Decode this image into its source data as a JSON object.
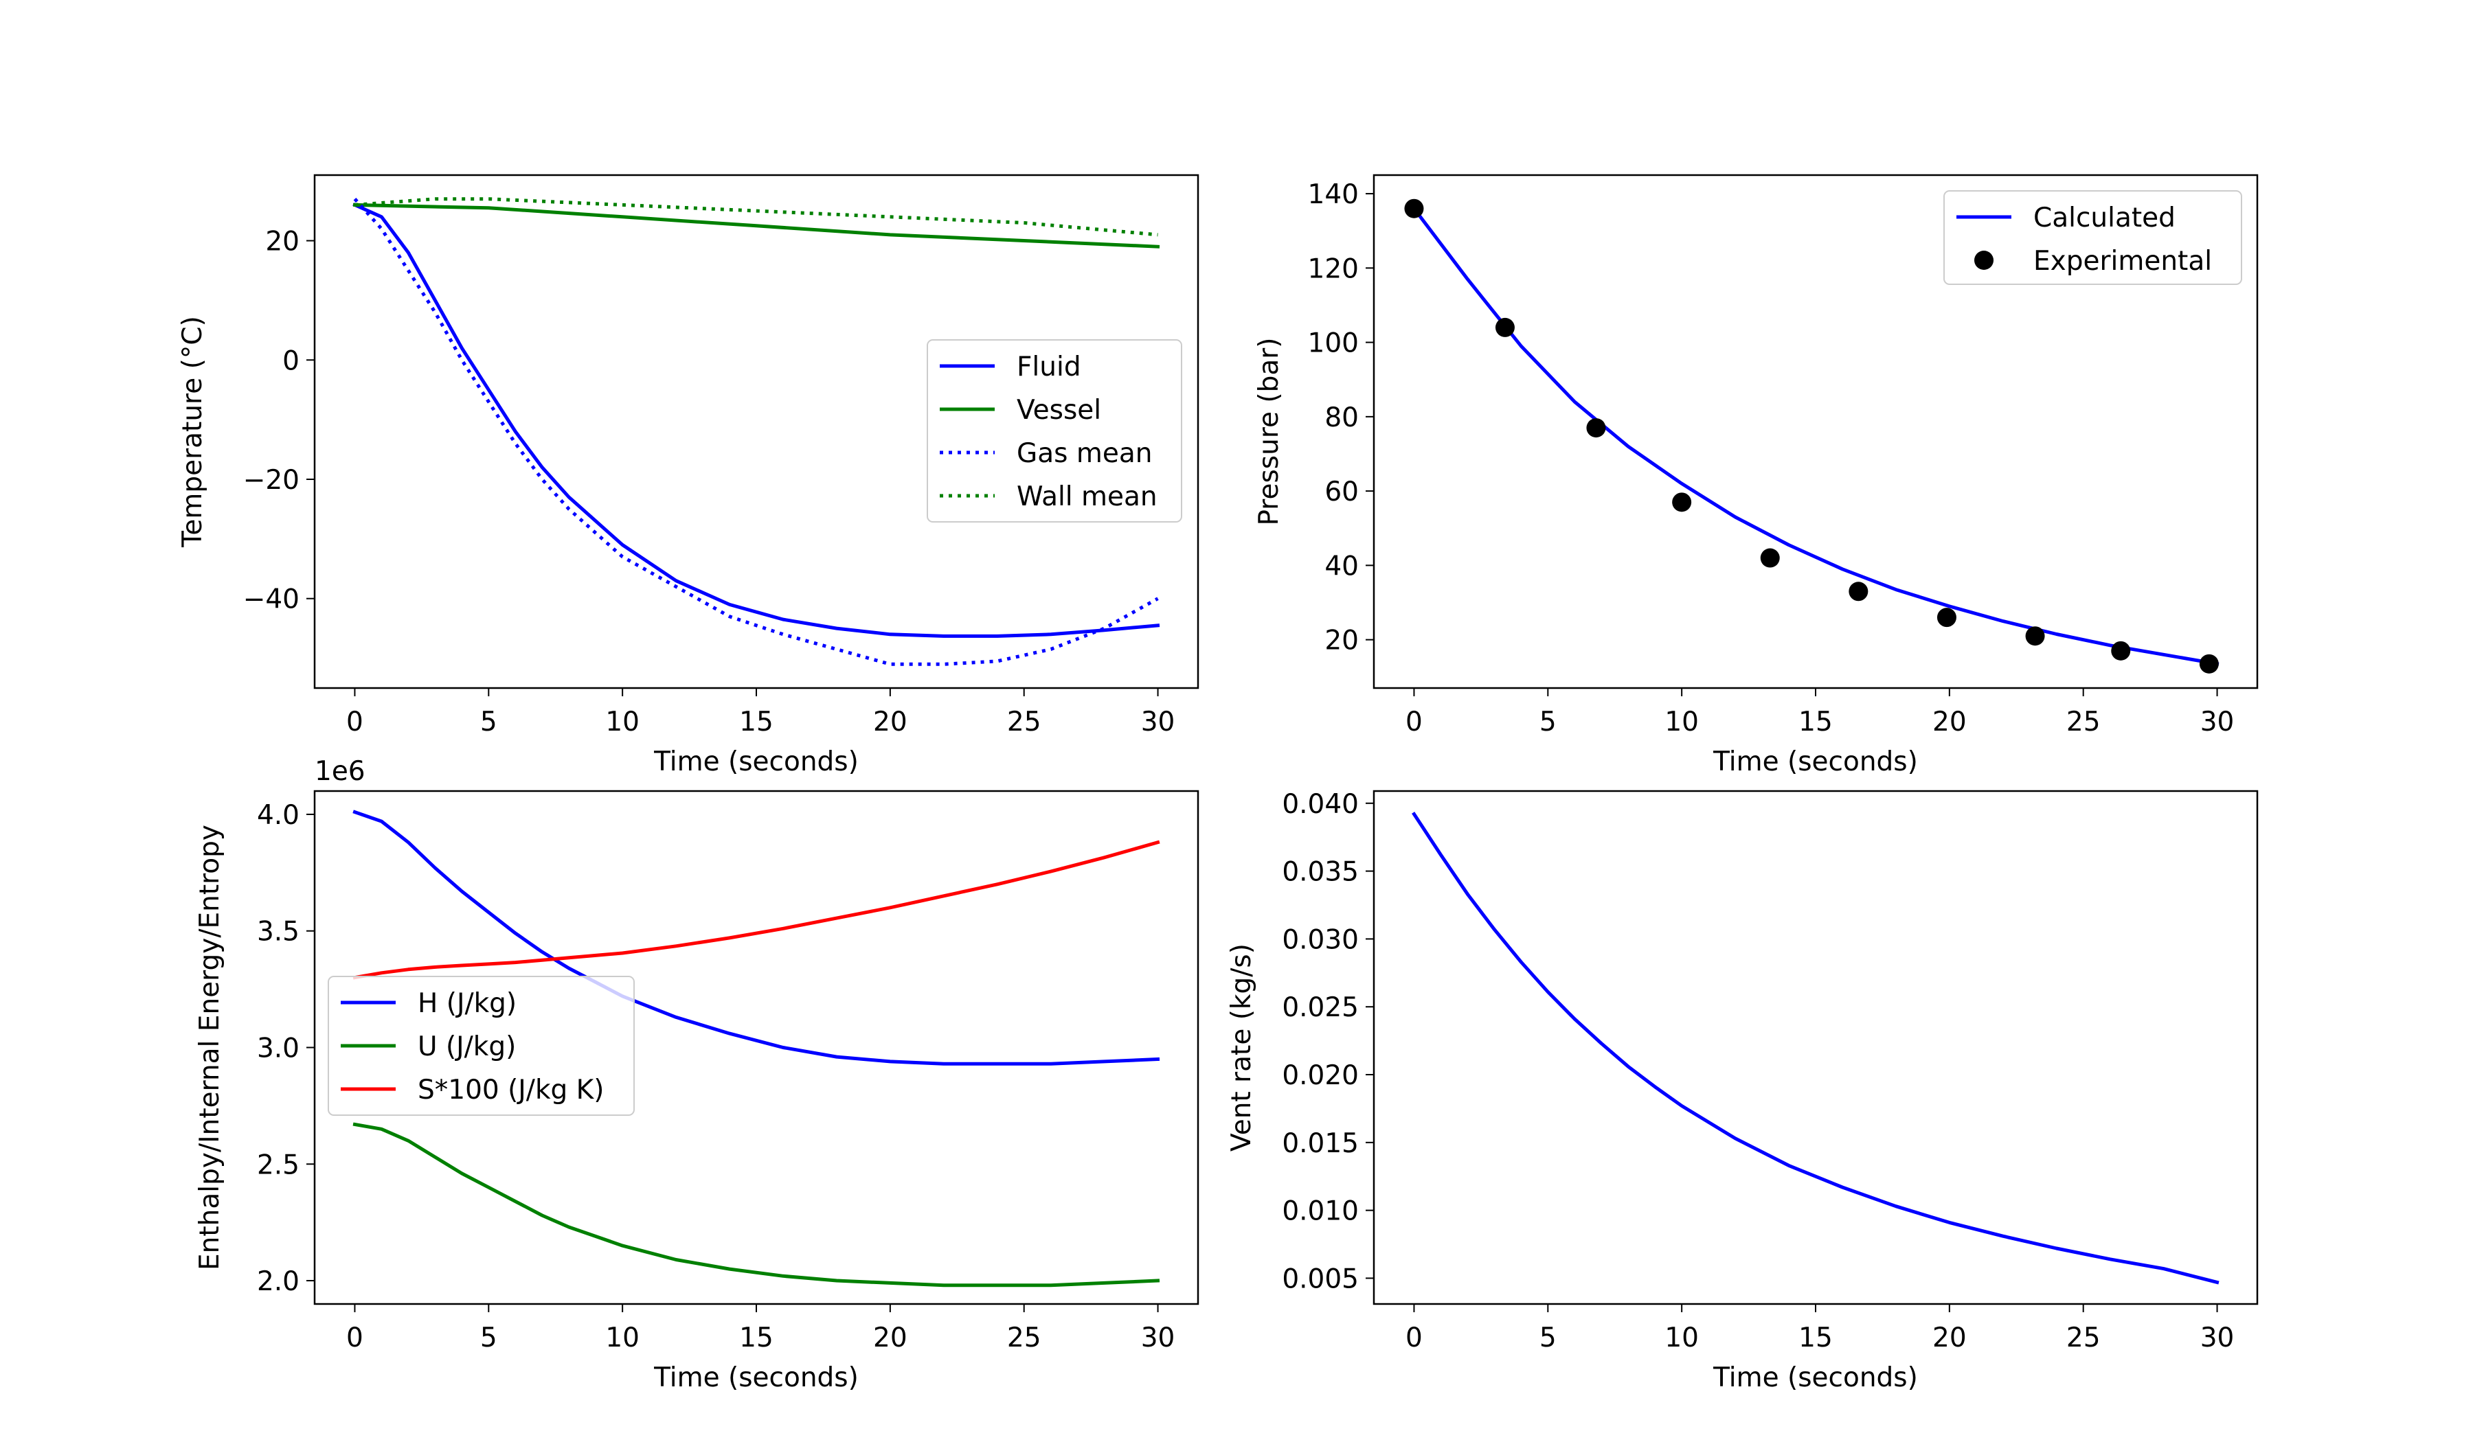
{
  "chart_data": [
    {
      "id": "temperature",
      "type": "line",
      "xlabel": "Time (seconds)",
      "ylabel": "Temperature (°C)",
      "xlim": [
        -1.5,
        31.5
      ],
      "ylim": [
        -55,
        31
      ],
      "xticks": [
        0,
        5,
        10,
        15,
        20,
        25,
        30
      ],
      "yticks": [
        -40,
        -20,
        0,
        20
      ],
      "ytick_labels": [
        "−40",
        "−20",
        "0",
        "20"
      ],
      "legend_position": "center-right",
      "series": [
        {
          "name": "Fluid",
          "style": "solid",
          "color": "#0000ff",
          "x": [
            0,
            1,
            2,
            3,
            4,
            5,
            6,
            7,
            8,
            9,
            10,
            12,
            14,
            16,
            18,
            20,
            22,
            24,
            26,
            28,
            30
          ],
          "y": [
            26,
            24,
            18,
            10,
            2,
            -5,
            -12,
            -18,
            -23,
            -27,
            -31,
            -37,
            -41,
            -43.5,
            -45,
            -46,
            -46.3,
            -46.3,
            -46,
            -45.3,
            -44.5
          ]
        },
        {
          "name": "Vessel",
          "style": "solid",
          "color": "#008000",
          "x": [
            0,
            5,
            10,
            15,
            20,
            25,
            30
          ],
          "y": [
            26,
            25.5,
            24,
            22.5,
            21,
            20,
            19
          ]
        },
        {
          "name": "Gas mean",
          "style": "dotted",
          "color": "#0000ff",
          "x": [
            0,
            1,
            2,
            3,
            4,
            5,
            6,
            7,
            8,
            9,
            10,
            12,
            14,
            16,
            18,
            20,
            22,
            24,
            26,
            28,
            30
          ],
          "y": [
            27,
            22,
            15,
            8,
            0,
            -7,
            -14,
            -20,
            -25,
            -29,
            -33,
            -38,
            -43,
            -46,
            -48.5,
            -51,
            -51,
            -50.5,
            -48.5,
            -45,
            -40
          ]
        },
        {
          "name": "Wall mean",
          "style": "dotted",
          "color": "#008000",
          "x": [
            0,
            3,
            5,
            10,
            15,
            20,
            25,
            30
          ],
          "y": [
            26,
            27,
            27,
            26,
            25,
            24,
            23,
            21
          ]
        }
      ]
    },
    {
      "id": "pressure",
      "type": "line",
      "xlabel": "Time (seconds)",
      "ylabel": "Pressure (bar)",
      "xlim": [
        -1.5,
        31.5
      ],
      "ylim": [
        7,
        145
      ],
      "xticks": [
        0,
        5,
        10,
        15,
        20,
        25,
        30
      ],
      "yticks": [
        20,
        40,
        60,
        80,
        100,
        120,
        140
      ],
      "legend_position": "top-right",
      "series": [
        {
          "name": "Calculated",
          "style": "solid",
          "color": "#0000ff",
          "x": [
            0,
            2,
            4,
            6,
            8,
            10,
            12,
            14,
            16,
            18,
            20,
            22,
            24,
            26,
            28,
            30
          ],
          "y": [
            136,
            117,
            99,
            84,
            72,
            62,
            53,
            45.5,
            39,
            33.5,
            29,
            25,
            21.5,
            18.5,
            16,
            13.5
          ]
        },
        {
          "name": "Experimental",
          "style": "markers",
          "color": "#000000",
          "x": [
            0,
            3.4,
            6.8,
            10,
            13.3,
            16.6,
            19.9,
            23.2,
            26.4,
            29.7
          ],
          "y": [
            136,
            104,
            77,
            57,
            42,
            33,
            26,
            21,
            17,
            13.5
          ]
        }
      ]
    },
    {
      "id": "energy",
      "type": "line",
      "xlabel": "Time (seconds)",
      "ylabel": "Enthalpy/Internal Energy/Entropy",
      "offset_label": "1e6",
      "xlim": [
        -1.5,
        31.5
      ],
      "ylim": [
        1.9,
        4.1
      ],
      "xticks": [
        0,
        5,
        10,
        15,
        20,
        25,
        30
      ],
      "yticks": [
        2.0,
        2.5,
        3.0,
        3.5,
        4.0
      ],
      "ytick_labels": [
        "2.0",
        "2.5",
        "3.0",
        "3.5",
        "4.0"
      ],
      "legend_position": "center-left",
      "series": [
        {
          "name": "H (J/kg)",
          "style": "solid",
          "color": "#0000ff",
          "x": [
            0,
            1,
            2,
            3,
            4,
            5,
            6,
            7,
            8,
            9,
            10,
            12,
            14,
            16,
            18,
            20,
            22,
            24,
            26,
            28,
            30
          ],
          "y": [
            4.01,
            3.97,
            3.88,
            3.77,
            3.67,
            3.58,
            3.49,
            3.41,
            3.34,
            3.28,
            3.22,
            3.13,
            3.06,
            3.0,
            2.96,
            2.94,
            2.93,
            2.93,
            2.93,
            2.94,
            2.95
          ]
        },
        {
          "name": "U (J/kg)",
          "style": "solid",
          "color": "#008000",
          "x": [
            0,
            1,
            2,
            3,
            4,
            5,
            6,
            7,
            8,
            9,
            10,
            12,
            14,
            16,
            18,
            20,
            22,
            24,
            26,
            28,
            30
          ],
          "y": [
            2.67,
            2.65,
            2.6,
            2.53,
            2.46,
            2.4,
            2.34,
            2.28,
            2.23,
            2.19,
            2.15,
            2.09,
            2.05,
            2.02,
            2.0,
            1.99,
            1.98,
            1.98,
            1.98,
            1.99,
            2.0
          ]
        },
        {
          "name": "S*100 (J/kg K)",
          "style": "solid",
          "color": "#ff0000",
          "x": [
            0,
            1,
            2,
            3,
            4,
            5,
            6,
            7,
            8,
            9,
            10,
            12,
            14,
            16,
            18,
            20,
            22,
            24,
            26,
            28,
            30
          ],
          "y": [
            3.3,
            3.32,
            3.335,
            3.345,
            3.352,
            3.358,
            3.365,
            3.375,
            3.385,
            3.395,
            3.405,
            3.435,
            3.47,
            3.51,
            3.555,
            3.6,
            3.65,
            3.7,
            3.755,
            3.815,
            3.88
          ]
        }
      ]
    },
    {
      "id": "vent",
      "type": "line",
      "xlabel": "Time (seconds)",
      "ylabel": "Vent rate (kg/s)",
      "xlim": [
        -1.5,
        31.5
      ],
      "ylim": [
        0.0031,
        0.0409
      ],
      "xticks": [
        0,
        5,
        10,
        15,
        20,
        25,
        30
      ],
      "yticks": [
        0.005,
        0.01,
        0.015,
        0.02,
        0.025,
        0.03,
        0.035,
        0.04
      ],
      "ytick_labels": [
        "0.005",
        "0.010",
        "0.015",
        "0.020",
        "0.025",
        "0.030",
        "0.035",
        "0.040"
      ],
      "series": [
        {
          "name": "Vent rate",
          "style": "solid",
          "color": "#0000ff",
          "x": [
            0,
            1,
            2,
            3,
            4,
            5,
            6,
            7,
            8,
            9,
            10,
            12,
            14,
            16,
            18,
            20,
            22,
            24,
            26,
            28,
            30
          ],
          "y": [
            0.0392,
            0.0362,
            0.0333,
            0.0307,
            0.0283,
            0.0261,
            0.0241,
            0.0223,
            0.0206,
            0.0191,
            0.0177,
            0.0153,
            0.0133,
            0.0117,
            0.0103,
            0.0091,
            0.0081,
            0.0072,
            0.0064,
            0.0057,
            0.0047
          ]
        }
      ]
    }
  ]
}
